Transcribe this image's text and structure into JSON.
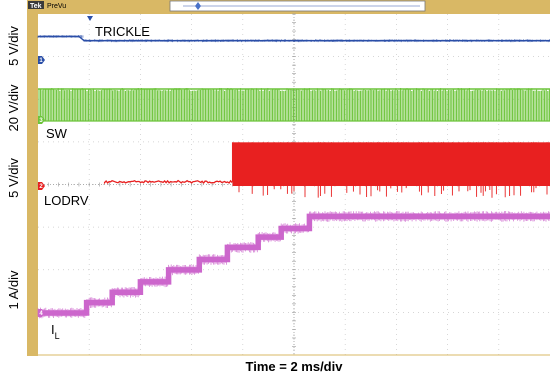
{
  "header": {
    "brand": "Tek",
    "mode": "PreVu"
  },
  "chart_data": {
    "type": "line",
    "xlabel": "Time = 2 ms/div",
    "grid": true,
    "x_divisions": 10,
    "y_divisions": 8,
    "series": [
      {
        "name": "TRICKLE",
        "label": "TRICKLE",
        "ylabel": "5 V/div",
        "channel": "1",
        "color": "#2b4fa8",
        "x": [
          -5.0,
          -4.2,
          -4.1,
          5.0
        ],
        "y": [
          5.6,
          5.6,
          4.6,
          4.6
        ]
      },
      {
        "name": "SW",
        "label": "SW",
        "ylabel": "20 V/div",
        "channel": "3",
        "color": "#6cc43a",
        "x": [
          -5.0,
          5.0
        ],
        "y": [
          20,
          20
        ]
      },
      {
        "name": "LODRV",
        "label": "LODRV",
        "ylabel": "5 V/div",
        "channel": "2",
        "color": "#e82020",
        "x": [
          -3.7,
          -1.2,
          -1.2,
          5.0
        ],
        "y": [
          0.5,
          0.5,
          5.2,
          5.2
        ]
      },
      {
        "name": "IL",
        "label": "I",
        "label_sub": "L",
        "ylabel": "1 A/div",
        "channel": "4",
        "color": "#cc66cc",
        "x": [
          -5.0,
          -4.05,
          -4.05,
          -3.55,
          -3.55,
          -3.0,
          -3.0,
          -2.45,
          -2.45,
          -1.85,
          -1.85,
          -1.3,
          -1.3,
          -0.7,
          -0.7,
          -0.25,
          -0.25,
          0.3,
          0.3,
          5.0
        ],
        "y": [
          0.0,
          0.0,
          0.3,
          0.3,
          0.6,
          0.6,
          0.9,
          0.9,
          1.25,
          1.25,
          1.55,
          1.55,
          1.9,
          1.9,
          2.2,
          2.2,
          2.45,
          2.45,
          2.8,
          2.8
        ]
      }
    ]
  }
}
